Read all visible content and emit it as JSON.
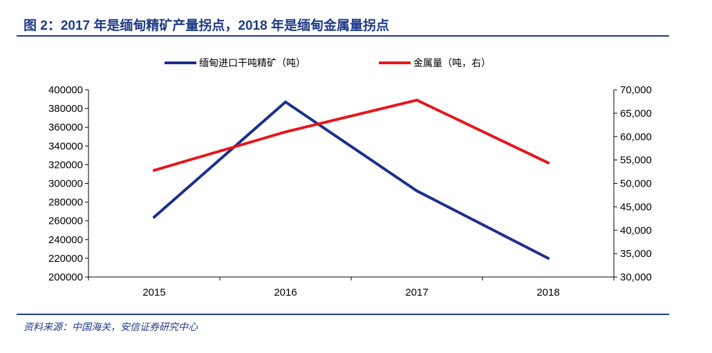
{
  "figure": {
    "title": "图 2：2017 年是缅甸精矿产量拐点，2018 年是缅甸金属量拐点",
    "source": "资料来源：中国海关，安信证券研究中心"
  },
  "chart_data": {
    "type": "line",
    "categories": [
      "2015",
      "2016",
      "2017",
      "2018"
    ],
    "series": [
      {
        "name": "缅甸进口干吨精矿（吨）",
        "axis": "left",
        "color": "#1c2f8f",
        "values": [
          264000,
          387000,
          292000,
          220000
        ]
      },
      {
        "name": "金属量（吨，右）",
        "axis": "right",
        "color": "#e5161b",
        "values": [
          52800,
          61000,
          67800,
          54400
        ]
      }
    ],
    "y_left": {
      "lim": [
        200000,
        400000
      ],
      "ticks": [
        200000,
        220000,
        240000,
        260000,
        280000,
        300000,
        320000,
        340000,
        360000,
        380000,
        400000
      ],
      "tick_labels": [
        "200000",
        "220000",
        "240000",
        "260000",
        "280000",
        "300000",
        "320000",
        "340000",
        "360000",
        "380000",
        "400000"
      ]
    },
    "y_right": {
      "lim": [
        30000,
        70000
      ],
      "ticks": [
        30000,
        35000,
        40000,
        45000,
        50000,
        55000,
        60000,
        65000,
        70000
      ],
      "tick_labels": [
        "30,000",
        "35,000",
        "40,000",
        "45,000",
        "50,000",
        "55,000",
        "60,000",
        "65,000",
        "70,000"
      ]
    },
    "legend_position": "top",
    "grid": false
  }
}
